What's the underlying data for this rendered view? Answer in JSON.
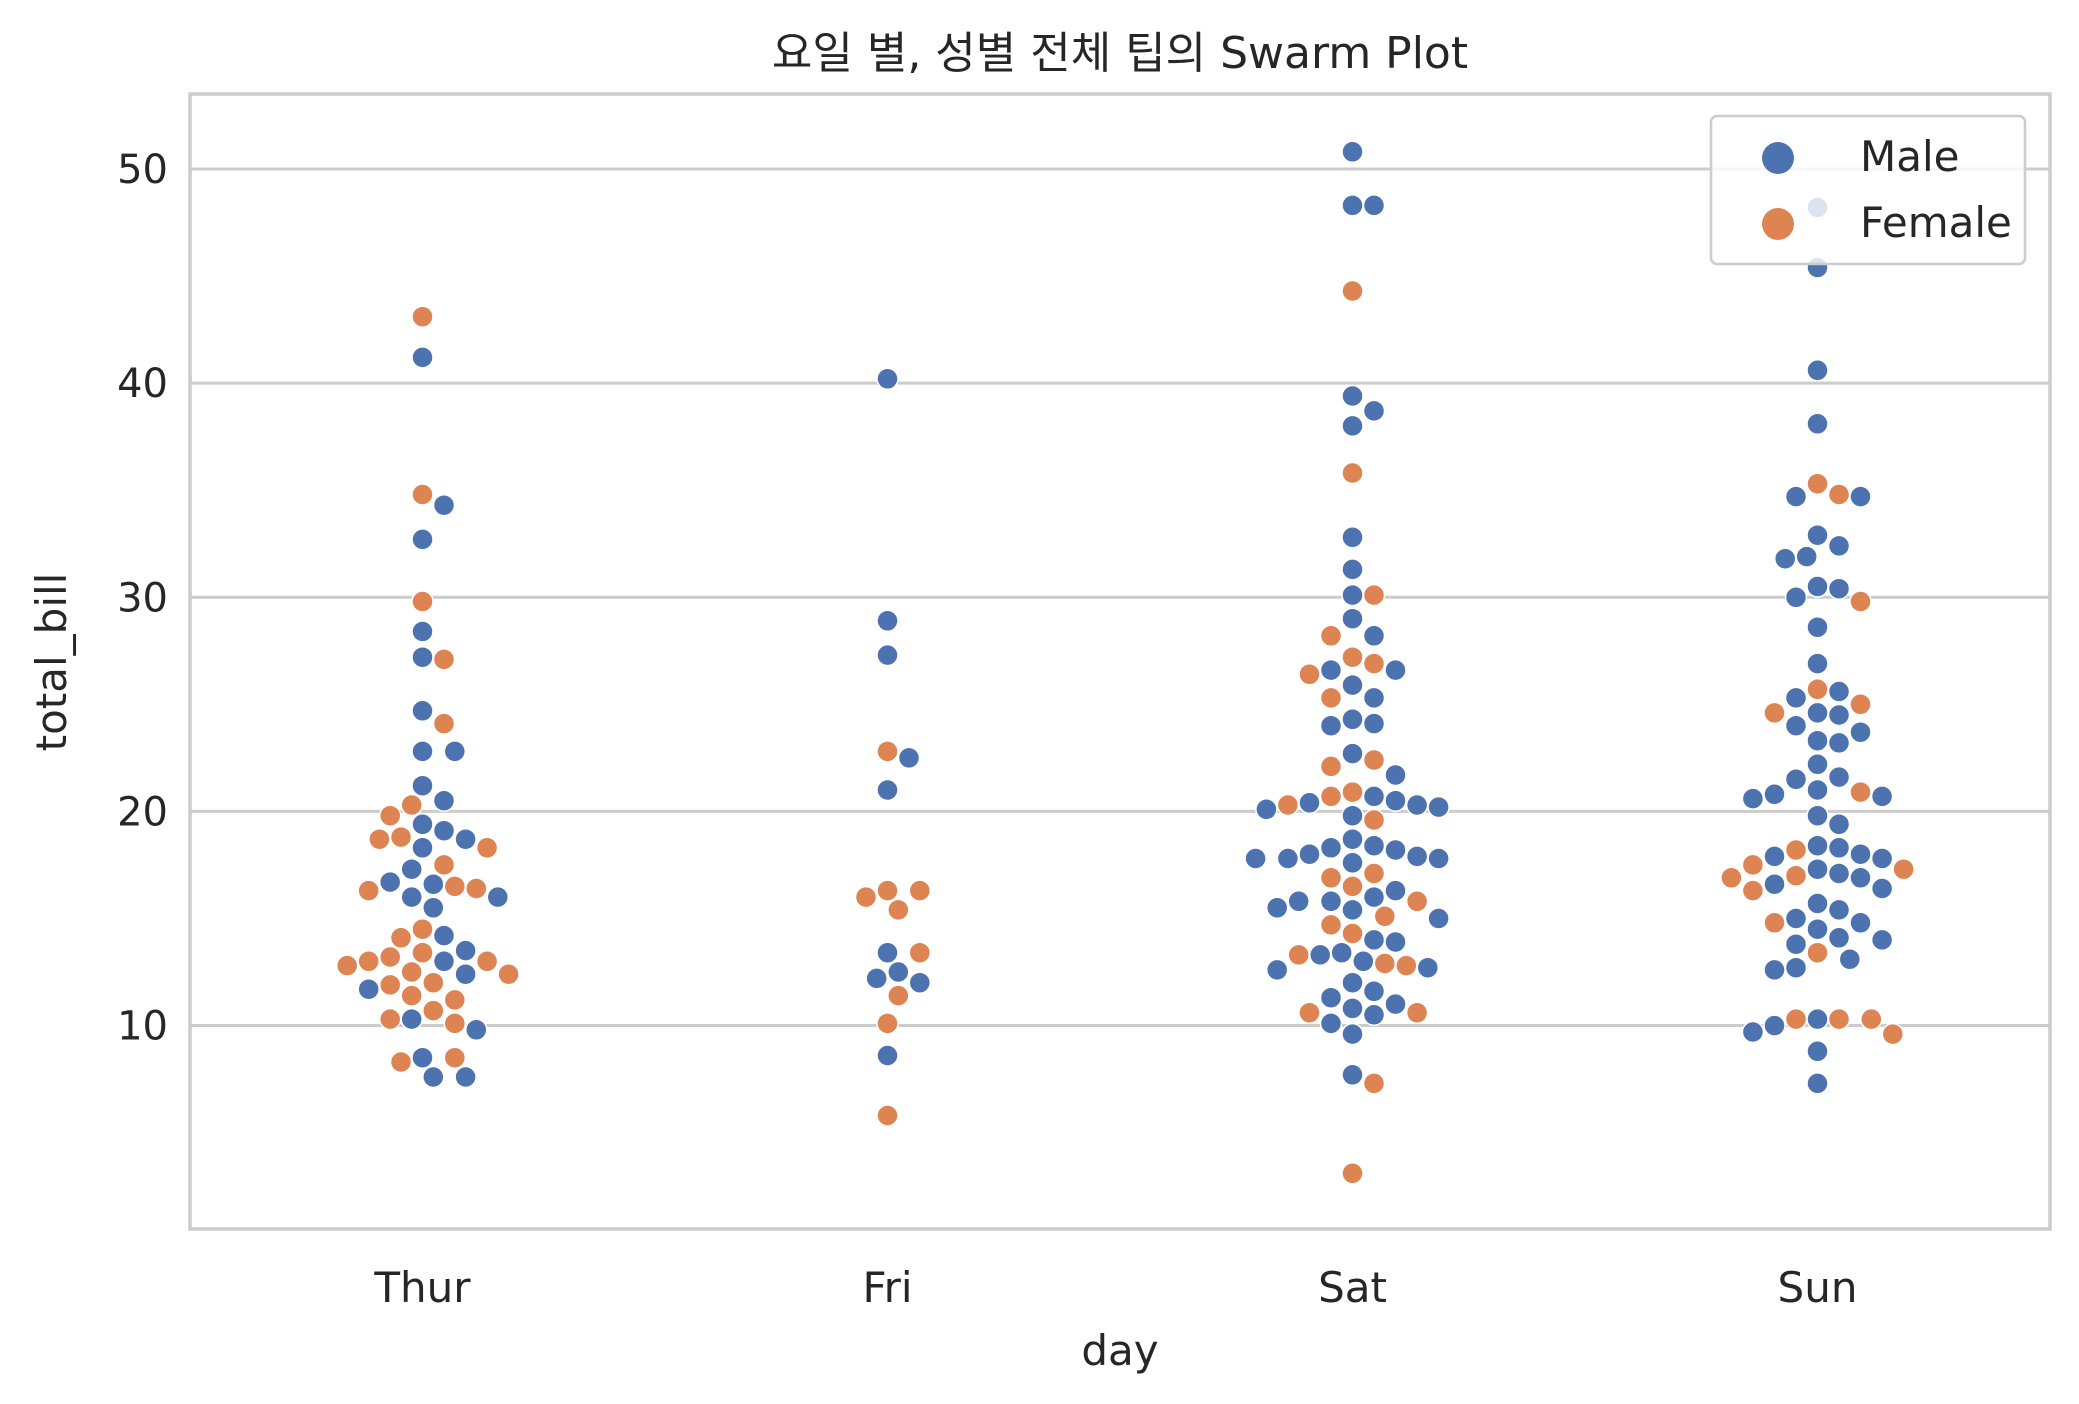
{
  "colors": {
    "male": "#4c72b0",
    "female": "#dd8452",
    "grid": "#cccccc",
    "frame": "#cccccc",
    "text": "#262626"
  },
  "chart_data": {
    "type": "scatter",
    "subtype": "swarm",
    "title": "요일 별, 성별 전체 팁의 Swarm Plot",
    "xlabel": "day",
    "ylabel": "total_bill",
    "categories": [
      "Thur",
      "Fri",
      "Sat",
      "Sun"
    ],
    "ylim": [
      0.5,
      53.5
    ],
    "yticks": [
      10,
      20,
      30,
      40,
      50
    ],
    "grid": true,
    "legend_position": "top-right",
    "series": [
      {
        "name": "Male",
        "color": "#4c72b0",
        "points": {
          "Thur": [
            41.2,
            34.3,
            32.7,
            28.4,
            27.2,
            24.7,
            22.8,
            22.8,
            21.2,
            20.5,
            19.4,
            19.1,
            18.7,
            18.3,
            17.3,
            16.7,
            16.6,
            16.0,
            16.0,
            15.5,
            14.2,
            13.5,
            13.0,
            12.4,
            11.7,
            10.3,
            9.8,
            8.5,
            7.6,
            7.6
          ],
          "Fri": [
            40.2,
            28.9,
            27.3,
            22.5,
            21.0,
            13.4,
            12.5,
            12.2,
            12.0,
            8.6
          ],
          "Sat": [
            50.8,
            48.3,
            48.3,
            39.4,
            38.7,
            38.0,
            32.8,
            31.3,
            30.1,
            29.0,
            28.2,
            26.6,
            26.6,
            25.9,
            25.3,
            24.3,
            24.1,
            24.0,
            22.7,
            21.7,
            20.7,
            20.5,
            20.4,
            20.3,
            20.2,
            20.1,
            19.8,
            18.7,
            18.4,
            18.3,
            18.2,
            18.0,
            17.9,
            17.8,
            17.8,
            17.8,
            17.6,
            16.3,
            16.0,
            15.8,
            15.8,
            15.5,
            15.4,
            15.0,
            14.0,
            13.9,
            13.4,
            13.3,
            13.0,
            12.7,
            12.6,
            12.0,
            11.6,
            11.3,
            11.0,
            10.8,
            10.5,
            10.1,
            9.6,
            7.7
          ],
          "Sun": [
            48.2,
            45.4,
            40.6,
            38.1,
            34.7,
            34.7,
            32.9,
            32.4,
            31.9,
            31.8,
            30.5,
            30.4,
            30.0,
            28.6,
            26.9,
            25.6,
            25.3,
            24.6,
            24.5,
            24.0,
            23.7,
            23.3,
            23.2,
            22.2,
            21.6,
            21.5,
            21.0,
            20.8,
            20.7,
            20.6,
            19.8,
            19.4,
            18.4,
            18.3,
            18.0,
            17.9,
            17.8,
            17.3,
            17.1,
            16.9,
            16.6,
            16.4,
            15.7,
            15.4,
            15.0,
            14.8,
            14.5,
            14.1,
            14.0,
            13.8,
            13.1,
            12.7,
            12.6,
            10.3,
            10.0,
            9.7,
            8.8,
            7.3
          ]
        }
      },
      {
        "name": "Female",
        "color": "#dd8452",
        "points": {
          "Thur": [
            43.1,
            34.8,
            29.8,
            27.1,
            24.1,
            20.3,
            19.8,
            18.8,
            18.7,
            18.3,
            17.5,
            16.5,
            16.4,
            16.3,
            14.5,
            14.1,
            13.4,
            13.2,
            13.0,
            13.0,
            12.8,
            12.5,
            12.4,
            12.0,
            11.9,
            11.4,
            11.2,
            10.7,
            10.3,
            10.1,
            8.5,
            8.3
          ],
          "Fri": [
            22.8,
            16.3,
            16.3,
            16.0,
            15.4,
            13.4,
            11.4,
            10.1,
            5.8
          ],
          "Sat": [
            44.3,
            35.8,
            30.1,
            28.2,
            27.2,
            26.9,
            26.4,
            25.3,
            22.4,
            22.1,
            20.9,
            20.7,
            20.3,
            19.6,
            17.1,
            16.9,
            16.5,
            15.8,
            15.1,
            14.7,
            14.3,
            13.3,
            12.9,
            12.8,
            10.6,
            10.6,
            7.3,
            3.1
          ],
          "Sun": [
            35.3,
            34.8,
            29.8,
            25.7,
            25.0,
            24.6,
            20.9,
            18.2,
            17.5,
            17.3,
            17.0,
            16.9,
            16.3,
            14.8,
            13.4,
            10.3,
            10.3,
            10.3,
            9.6
          ]
        }
      }
    ]
  }
}
